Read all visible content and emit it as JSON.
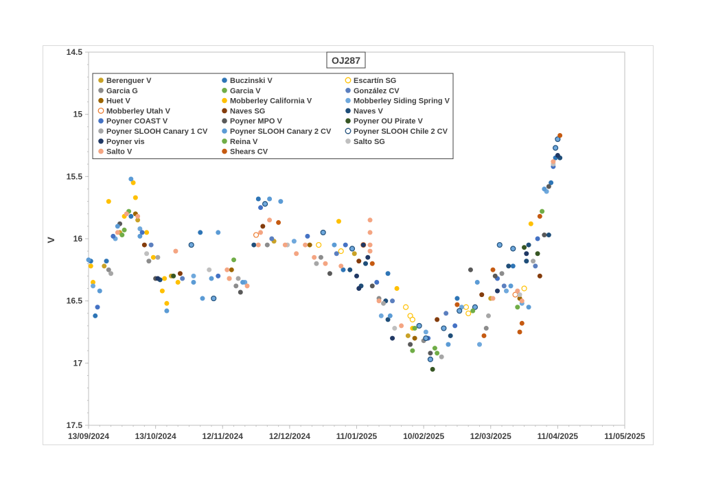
{
  "chart_data": {
    "type": "scatter",
    "title": "OJ287",
    "xlabel": "",
    "ylabel": "V",
    "y_inverted": true,
    "ylim": [
      14.5,
      17.5
    ],
    "yticks": [
      "14.5",
      "15",
      "15.5",
      "16",
      "16.5",
      "17",
      "17.5"
    ],
    "xlim": [
      "2024-09-13",
      "2025-05-11"
    ],
    "xticks": [
      "13/09/2024",
      "13/10/2024",
      "12/11/2024",
      "12/12/2024",
      "11/01/2025",
      "10/02/2025",
      "12/03/2025",
      "11/04/2025",
      "11/05/2025"
    ],
    "grid": false,
    "legend_position": "top-left",
    "series": [
      {
        "name": "Berenguer V",
        "color": "#c9a227",
        "marker": "filled",
        "points": [
          [
            "2024-09-20",
            16.22
          ],
          [
            "2024-09-27",
            15.95
          ],
          [
            "2024-10-05",
            15.85
          ],
          [
            "2024-10-20",
            16.3
          ],
          [
            "2024-11-15",
            16.32
          ],
          [
            "2024-12-05",
            16.02
          ],
          [
            "2025-01-10",
            16.12
          ],
          [
            "2025-02-03",
            16.78
          ],
          [
            "2025-03-12",
            16.48
          ]
        ]
      },
      {
        "name": "Buczinski V",
        "color": "#2e75b6",
        "marker": "filled",
        "points": [
          [
            "2024-09-14",
            16.18
          ],
          [
            "2024-09-16",
            16.62
          ],
          [
            "2024-09-21",
            16.18
          ],
          [
            "2024-10-02",
            15.82
          ],
          [
            "2024-11-02",
            15.95
          ],
          [
            "2024-11-28",
            15.68
          ],
          [
            "2025-01-05",
            16.25
          ],
          [
            "2025-01-25",
            16.28
          ],
          [
            "2025-02-25",
            16.48
          ],
          [
            "2025-03-22",
            16.22
          ],
          [
            "2025-04-08",
            15.55
          ],
          [
            "2025-04-10",
            15.35
          ]
        ]
      },
      {
        "name": "Escartín SG",
        "color": "#ffc000",
        "marker": "open",
        "points": [
          [
            "2024-12-25",
            16.05
          ],
          [
            "2025-01-04",
            16.1
          ],
          [
            "2025-02-02",
            16.55
          ],
          [
            "2025-02-04",
            16.62
          ],
          [
            "2025-02-05",
            16.65
          ],
          [
            "2025-03-01",
            16.55
          ],
          [
            "2025-03-02",
            16.6
          ],
          [
            "2025-03-27",
            16.4
          ]
        ]
      },
      {
        "name": "Garcia G",
        "color": "#8c8c8c",
        "marker": "filled",
        "points": [
          [
            "2024-09-22",
            16.25
          ],
          [
            "2024-10-10",
            16.18
          ],
          [
            "2024-11-18",
            16.38
          ],
          [
            "2024-12-02",
            16.05
          ],
          [
            "2024-12-26",
            16.15
          ],
          [
            "2025-01-21",
            16.48
          ],
          [
            "2025-02-10",
            16.82
          ],
          [
            "2025-03-10",
            16.72
          ],
          [
            "2025-03-17",
            16.28
          ]
        ]
      },
      {
        "name": "Garcia V",
        "color": "#70ad47",
        "marker": "filled",
        "points": [
          [
            "2024-09-28",
            15.97
          ],
          [
            "2024-10-01",
            15.78
          ],
          [
            "2024-11-17",
            16.17
          ],
          [
            "2025-02-05",
            16.9
          ],
          [
            "2025-02-15",
            16.88
          ],
          [
            "2025-03-24",
            16.55
          ],
          [
            "2025-04-04",
            15.78
          ]
        ]
      },
      {
        "name": "González CV",
        "color": "#5b7fbf",
        "marker": "filled",
        "points": [
          [
            "2024-10-11",
            16.05
          ],
          [
            "2024-10-25",
            16.32
          ],
          [
            "2024-12-04",
            16.0
          ],
          [
            "2025-01-02",
            16.12
          ],
          [
            "2025-01-27",
            16.5
          ],
          [
            "2025-02-20",
            16.6
          ],
          [
            "2025-03-18",
            16.38
          ],
          [
            "2025-04-01",
            16.22
          ]
        ]
      },
      {
        "name": "Huet V",
        "color": "#9c6500",
        "marker": "filled",
        "points": [
          [
            "2024-10-04",
            15.8
          ],
          [
            "2024-11-16",
            16.25
          ],
          [
            "2024-12-21",
            16.05
          ],
          [
            "2025-02-06",
            16.8
          ],
          [
            "2025-03-25",
            16.48
          ]
        ]
      },
      {
        "name": "Mobberley California V",
        "color": "#ffc000",
        "marker": "filled",
        "points": [
          [
            "2024-09-14",
            16.22
          ],
          [
            "2024-09-15",
            16.35
          ],
          [
            "2024-09-22",
            15.7
          ],
          [
            "2024-09-29",
            15.82
          ],
          [
            "2024-10-03",
            15.55
          ],
          [
            "2024-10-04",
            15.67
          ],
          [
            "2024-10-09",
            15.95
          ],
          [
            "2024-10-12",
            16.15
          ],
          [
            "2024-10-16",
            16.42
          ],
          [
            "2024-10-17",
            16.32
          ],
          [
            "2024-10-18",
            16.52
          ],
          [
            "2024-10-23",
            16.35
          ],
          [
            "2025-01-03",
            15.86
          ],
          [
            "2025-01-29",
            16.4
          ],
          [
            "2025-02-05",
            16.72
          ],
          [
            "2025-03-30",
            15.88
          ]
        ]
      },
      {
        "name": "Mobberley Siding Spring V",
        "color": "#6fa8dc",
        "marker": "filled",
        "points": [
          [
            "2024-09-15",
            16.38
          ],
          [
            "2024-09-25",
            16.0
          ],
          [
            "2024-10-06",
            15.92
          ],
          [
            "2024-10-30",
            16.3
          ],
          [
            "2024-11-22",
            16.35
          ],
          [
            "2024-12-14",
            16.02
          ],
          [
            "2025-01-22",
            16.62
          ],
          [
            "2025-02-11",
            16.75
          ],
          [
            "2025-02-27",
            16.55
          ],
          [
            "2025-03-07",
            16.85
          ],
          [
            "2025-03-19",
            16.42
          ],
          [
            "2025-03-26",
            16.52
          ],
          [
            "2025-04-06",
            15.62
          ]
        ]
      },
      {
        "name": "Mobberley Utah V",
        "color": "#ed7d31",
        "marker": "open",
        "points": [
          [
            "2024-11-27",
            15.97
          ],
          [
            "2025-01-14",
            16.05
          ],
          [
            "2025-03-23",
            16.45
          ]
        ]
      },
      {
        "name": "Naves SG",
        "color": "#843c0c",
        "marker": "filled",
        "points": [
          [
            "2024-10-08",
            16.05
          ],
          [
            "2024-10-24",
            16.28
          ],
          [
            "2024-11-30",
            15.9
          ],
          [
            "2025-01-12",
            16.18
          ],
          [
            "2025-02-16",
            16.65
          ],
          [
            "2025-03-08",
            16.45
          ],
          [
            "2025-04-03",
            16.3
          ]
        ]
      },
      {
        "name": "Naves V",
        "color": "#1f4e79",
        "marker": "filled",
        "points": [
          [
            "2024-10-15",
            16.33
          ],
          [
            "2024-11-26",
            16.05
          ],
          [
            "2025-01-08",
            16.25
          ],
          [
            "2025-01-13",
            16.38
          ],
          [
            "2025-01-15",
            16.2
          ],
          [
            "2025-01-24",
            16.5
          ],
          [
            "2025-01-25",
            16.65
          ],
          [
            "2025-02-22",
            16.78
          ],
          [
            "2025-03-20",
            16.22
          ],
          [
            "2025-03-28",
            16.18
          ],
          [
            "2025-03-29",
            16.05
          ],
          [
            "2025-04-07",
            15.97
          ],
          [
            "2025-04-12",
            15.35
          ]
        ]
      },
      {
        "name": "Poyner COAST V",
        "color": "#4472c4",
        "marker": "filled",
        "points": [
          [
            "2024-09-17",
            16.55
          ],
          [
            "2024-09-24",
            15.98
          ],
          [
            "2024-10-07",
            15.95
          ],
          [
            "2024-11-10",
            16.3
          ],
          [
            "2024-11-29",
            15.75
          ],
          [
            "2024-12-20",
            15.98
          ],
          [
            "2025-01-06",
            16.05
          ],
          [
            "2025-01-20",
            16.35
          ],
          [
            "2025-02-12",
            16.8
          ],
          [
            "2025-02-24",
            16.7
          ],
          [
            "2025-03-15",
            16.32
          ],
          [
            "2025-04-02",
            16.0
          ],
          [
            "2025-04-09",
            15.42
          ]
        ]
      },
      {
        "name": "Poyner MPO V",
        "color": "#595959",
        "marker": "filled",
        "points": [
          [
            "2024-09-27",
            15.88
          ],
          [
            "2024-10-13",
            16.32
          ],
          [
            "2024-11-20",
            16.43
          ],
          [
            "2024-12-30",
            16.28
          ],
          [
            "2025-01-18",
            16.38
          ],
          [
            "2025-02-04",
            16.85
          ],
          [
            "2025-02-13",
            16.92
          ],
          [
            "2025-03-03",
            16.25
          ],
          [
            "2025-03-14",
            16.3
          ],
          [
            "2025-04-05",
            15.97
          ],
          [
            "2025-04-07",
            15.58
          ]
        ]
      },
      {
        "name": "Poyner OU Pirate V",
        "color": "#375623",
        "marker": "filled",
        "points": [
          [
            "2024-10-21",
            16.3
          ],
          [
            "2025-02-14",
            17.05
          ],
          [
            "2025-03-27",
            16.07
          ],
          [
            "2025-04-02",
            16.12
          ]
        ]
      },
      {
        "name": "Poyner SLOOH Canary 1 CV",
        "color": "#a6a6a6",
        "marker": "filled",
        "points": [
          [
            "2024-09-23",
            16.28
          ],
          [
            "2024-10-14",
            16.15
          ],
          [
            "2024-11-19",
            16.32
          ],
          [
            "2024-12-24",
            16.2
          ],
          [
            "2025-01-23",
            16.52
          ],
          [
            "2025-02-18",
            16.95
          ],
          [
            "2025-03-11",
            16.62
          ],
          [
            "2025-03-31",
            16.18
          ]
        ]
      },
      {
        "name": "Poyner SLOOH Canary 2 CV",
        "color": "#5b9bd5",
        "marker": "filled",
        "points": [
          [
            "2024-09-13",
            16.17
          ],
          [
            "2024-09-18",
            16.42
          ],
          [
            "2024-09-26",
            15.9
          ],
          [
            "2024-10-02",
            15.52
          ],
          [
            "2024-10-06",
            15.98
          ],
          [
            "2024-10-18",
            16.58
          ],
          [
            "2024-10-30",
            16.35
          ],
          [
            "2024-11-03",
            16.48
          ],
          [
            "2024-11-07",
            16.32
          ],
          [
            "2024-11-10",
            15.95
          ],
          [
            "2024-11-21",
            16.35
          ],
          [
            "2024-12-03",
            15.68
          ],
          [
            "2024-12-08",
            15.7
          ],
          [
            "2025-01-01",
            16.05
          ],
          [
            "2025-01-26",
            16.62
          ],
          [
            "2025-02-21",
            16.85
          ],
          [
            "2025-03-06",
            16.35
          ],
          [
            "2025-03-21",
            16.38
          ],
          [
            "2025-03-29",
            16.55
          ],
          [
            "2025-04-05",
            15.6
          ]
        ]
      },
      {
        "name": "Poyner SLOOH Chile 2 CV",
        "color": "#1f4e79",
        "marker": "open",
        "points": [
          [
            "2024-10-29",
            16.05
          ],
          [
            "2024-11-08",
            16.48
          ],
          [
            "2024-12-01",
            15.72
          ],
          [
            "2024-12-27",
            15.95
          ],
          [
            "2025-01-09",
            16.08
          ],
          [
            "2025-02-08",
            16.7
          ],
          [
            "2025-02-11",
            16.8
          ],
          [
            "2025-02-13",
            16.97
          ],
          [
            "2025-02-19",
            16.72
          ],
          [
            "2025-02-26",
            16.58
          ],
          [
            "2025-03-05",
            16.55
          ],
          [
            "2025-03-16",
            16.05
          ],
          [
            "2025-03-22",
            16.08
          ],
          [
            "2025-04-11",
            15.2
          ],
          [
            "2025-04-10",
            15.27
          ]
        ]
      },
      {
        "name": "Poyner vis",
        "color": "#203864",
        "marker": "filled",
        "points": [
          [
            "2024-10-14",
            16.32
          ],
          [
            "2025-01-11",
            16.3
          ],
          [
            "2025-01-12",
            16.4
          ],
          [
            "2025-01-14",
            16.05
          ],
          [
            "2025-01-16",
            16.15
          ],
          [
            "2025-01-27",
            16.8
          ],
          [
            "2025-03-15",
            16.42
          ],
          [
            "2025-03-28",
            16.12
          ],
          [
            "2025-04-11",
            15.33
          ]
        ]
      },
      {
        "name": "Reina V",
        "color": "#70ad47",
        "marker": "filled",
        "points": [
          [
            "2024-09-29",
            15.93
          ],
          [
            "2025-02-06",
            16.72
          ],
          [
            "2025-02-16",
            16.92
          ],
          [
            "2025-03-04",
            16.58
          ]
        ]
      },
      {
        "name": "Salto SG",
        "color": "#bfbfbf",
        "marker": "filled",
        "points": [
          [
            "2024-10-09",
            16.12
          ],
          [
            "2024-11-06",
            16.25
          ],
          [
            "2024-12-11",
            16.05
          ],
          [
            "2025-01-28",
            16.72
          ],
          [
            "2025-03-25",
            16.45
          ],
          [
            "2025-04-09",
            15.4
          ]
        ]
      },
      {
        "name": "Salto V",
        "color": "#f4a582",
        "marker": "filled",
        "points": [
          [
            "2024-09-26",
            15.95
          ],
          [
            "2024-09-30",
            15.8
          ],
          [
            "2024-10-05",
            15.82
          ],
          [
            "2024-10-22",
            16.1
          ],
          [
            "2024-11-14",
            16.25
          ],
          [
            "2024-11-15",
            16.32
          ],
          [
            "2024-11-23",
            16.38
          ],
          [
            "2024-11-28",
            16.05
          ],
          [
            "2024-11-29",
            15.95
          ],
          [
            "2024-12-03",
            15.85
          ],
          [
            "2024-12-10",
            16.05
          ],
          [
            "2024-12-15",
            16.12
          ],
          [
            "2024-12-19",
            16.05
          ],
          [
            "2024-12-23",
            16.15
          ],
          [
            "2024-12-28",
            16.2
          ],
          [
            "2025-01-04",
            16.22
          ],
          [
            "2025-01-17",
            15.85
          ],
          [
            "2025-01-17",
            15.95
          ],
          [
            "2025-01-17",
            16.05
          ],
          [
            "2025-01-17",
            16.1
          ],
          [
            "2025-01-21",
            16.5
          ],
          [
            "2025-01-31",
            16.7
          ],
          [
            "2025-03-13",
            16.48
          ],
          [
            "2025-03-24",
            16.42
          ],
          [
            "2025-03-26",
            16.5
          ],
          [
            "2025-04-09",
            15.38
          ]
        ]
      },
      {
        "name": "Shears CV",
        "color": "#c55a11",
        "marker": "filled",
        "points": [
          [
            "2024-12-07",
            15.87
          ],
          [
            "2025-01-18",
            16.2
          ],
          [
            "2025-02-25",
            16.53
          ],
          [
            "2025-03-09",
            16.78
          ],
          [
            "2025-03-13",
            16.25
          ],
          [
            "2025-03-25",
            16.75
          ],
          [
            "2025-03-26",
            16.68
          ],
          [
            "2025-04-03",
            15.82
          ],
          [
            "2025-04-12",
            15.17
          ]
        ]
      }
    ]
  }
}
